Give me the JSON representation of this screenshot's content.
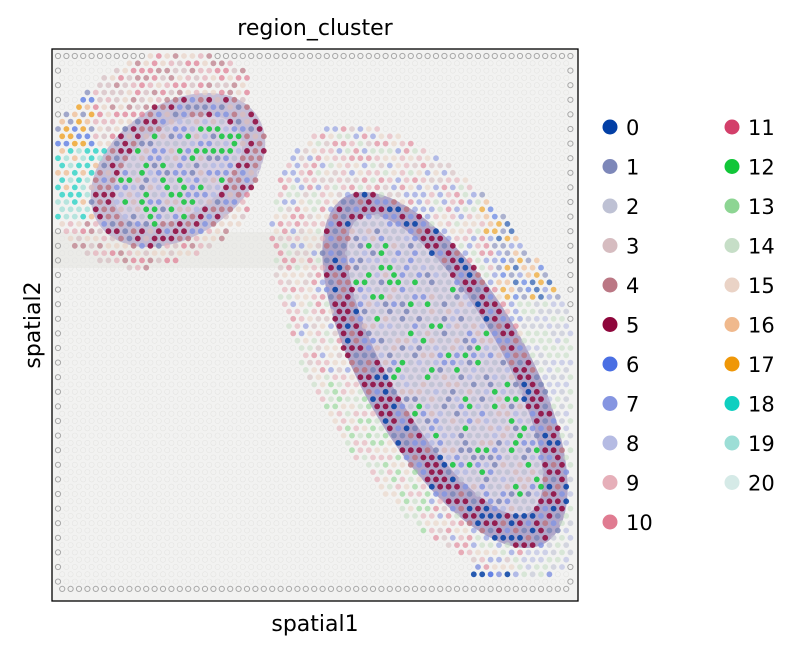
{
  "chart_data": {
    "type": "scatter",
    "title": "region_cluster",
    "xlabel": "spatial1",
    "ylabel": "spatial2",
    "grid": false,
    "legend_placement": "right, two columns",
    "background": "H&E tissue image",
    "categories": [
      "0",
      "1",
      "2",
      "3",
      "4",
      "5",
      "6",
      "7",
      "8",
      "9",
      "10",
      "11",
      "12",
      "13",
      "14",
      "15",
      "16",
      "17",
      "18",
      "19",
      "20"
    ],
    "colors": [
      "#023fa5",
      "#7d87b9",
      "#bec1d4",
      "#d6bcc0",
      "#bb7784",
      "#8e063b",
      "#4a6fe3",
      "#8595e1",
      "#b5bbe3",
      "#e6afb9",
      "#e07b91",
      "#d33f6a",
      "#11c638",
      "#8dd593",
      "#c6dec7",
      "#ead3c6",
      "#f0b98d",
      "#ef9708",
      "#0fcfc0",
      "#9cded6",
      "#d5eae7"
    ],
    "regions": [
      {
        "name": "upper-left tissue section",
        "dominant_clusters": [
          "4",
          "5",
          "7",
          "2",
          "12"
        ]
      },
      {
        "name": "lower-right tissue section",
        "dominant_clusters": [
          "5",
          "4",
          "7",
          "2",
          "12",
          "0",
          "1"
        ]
      }
    ]
  }
}
